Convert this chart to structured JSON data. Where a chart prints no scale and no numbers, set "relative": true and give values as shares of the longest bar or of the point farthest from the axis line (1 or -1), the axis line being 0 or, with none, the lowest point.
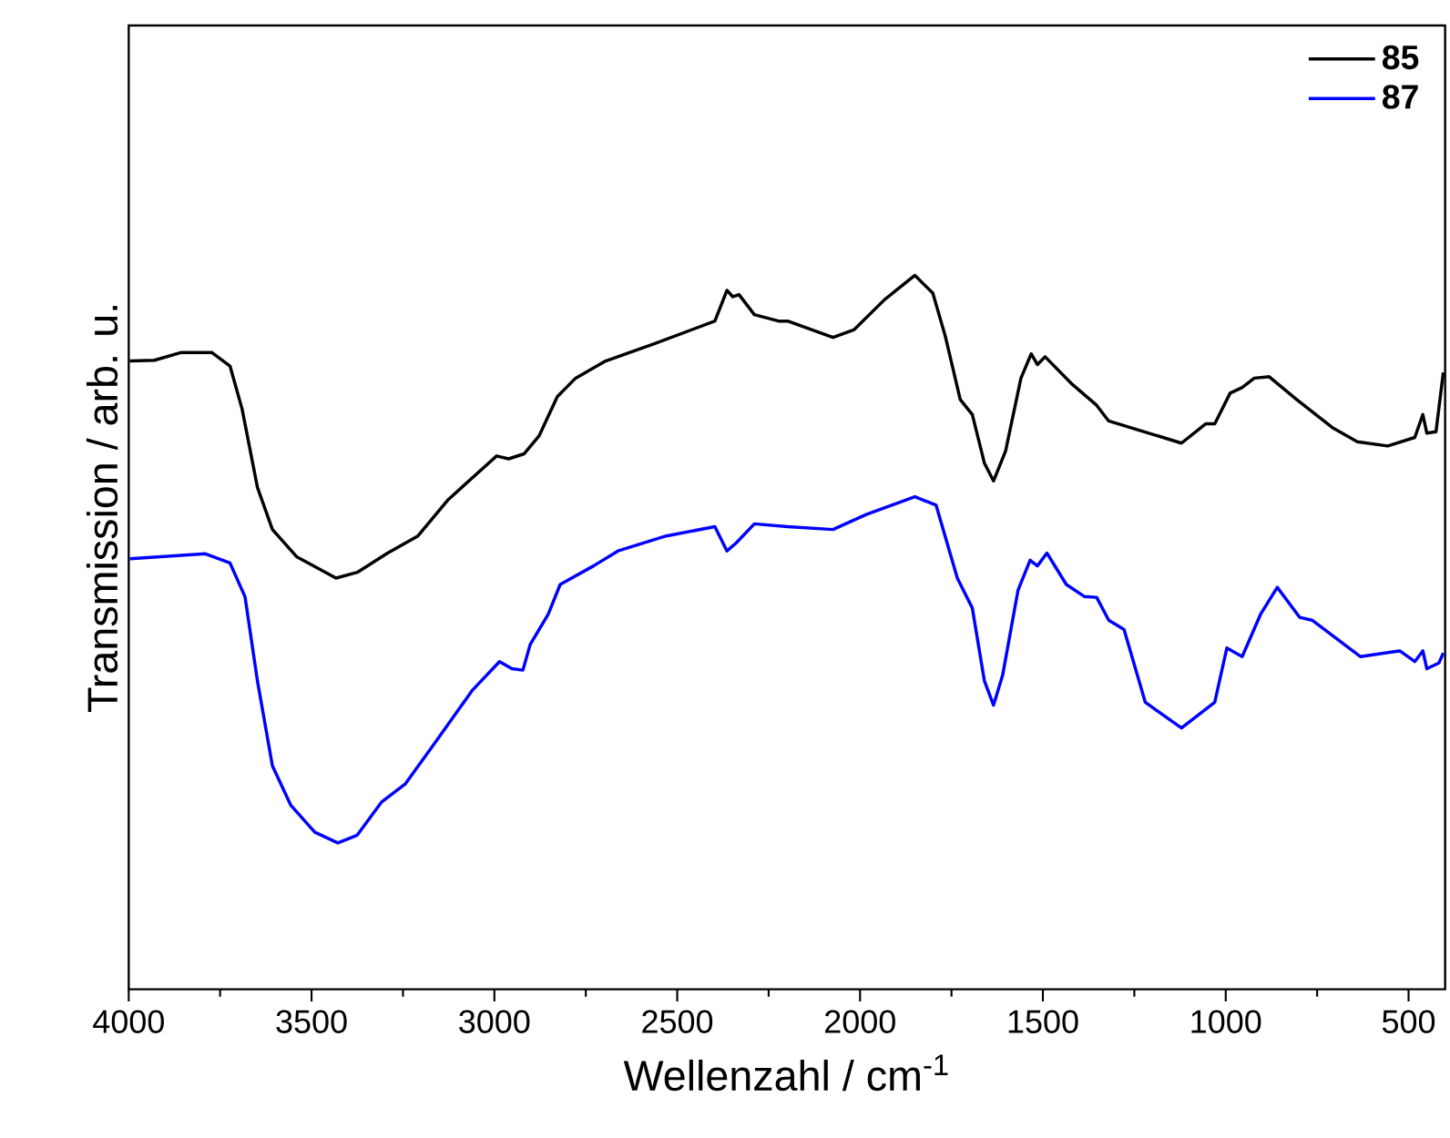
{
  "chart_data": {
    "type": "line",
    "xlabel": "Wellenzahl / cm$^{-1}$",
    "ylabel": "Transmission / arb. u.",
    "relative": true,
    "xlim": [
      4000,
      400
    ],
    "xticks": [
      4000,
      {
        "value": 3750,
        "label": null
      },
      3500,
      {
        "value": 3250,
        "label": null
      },
      3000,
      {
        "value": 2750,
        "label": null
      },
      2500,
      {
        "value": 2250,
        "label": null
      },
      2000,
      {
        "value": 1750,
        "label": null
      },
      1500,
      {
        "value": 1250,
        "label": null
      },
      1000,
      {
        "value": 750,
        "label": null
      },
      500
    ],
    "legend": "top right",
    "grid": false,
    "marker": "none",
    "line_style": "solid",
    "series": [
      {
        "name": "85",
        "color": "#000000",
        "x": [
          3997,
          3930,
          3856,
          3773,
          3723,
          3690,
          3648,
          3607,
          3541,
          3433,
          3375,
          3292,
          3209,
          3126,
          2994,
          2961,
          2919,
          2878,
          2828,
          2778,
          2696,
          2563,
          2397,
          2364,
          2348,
          2331,
          2289,
          2223,
          2198,
          2074,
          2016,
          1933,
          1850,
          1801,
          1767,
          1726,
          1693,
          1660,
          1635,
          1602,
          1560,
          1532,
          1515,
          1494,
          1419,
          1353,
          1320,
          1204,
          1121,
          1055,
          1030,
          988,
          955,
          922,
          881,
          806,
          706,
          640,
          557,
          483,
          461,
          450,
          425,
          405
        ],
        "values": [
          0.88,
          0.881,
          0.892,
          0.892,
          0.873,
          0.813,
          0.703,
          0.644,
          0.606,
          0.576,
          0.584,
          0.611,
          0.635,
          0.686,
          0.747,
          0.743,
          0.75,
          0.775,
          0.83,
          0.856,
          0.88,
          0.904,
          0.936,
          0.979,
          0.97,
          0.973,
          0.945,
          0.936,
          0.936,
          0.913,
          0.924,
          0.966,
          1,
          0.975,
          0.915,
          0.826,
          0.805,
          0.737,
          0.712,
          0.754,
          0.856,
          0.89,
          0.875,
          0.886,
          0.847,
          0.818,
          0.796,
          0.778,
          0.765,
          0.792,
          0.792,
          0.835,
          0.843,
          0.856,
          0.858,
          0.826,
          0.786,
          0.767,
          0.761,
          0.773,
          0.805,
          0.779,
          0.781,
          0.864
        ]
      },
      {
        "name": "87",
        "color": "#0000ff",
        "x": [
          3997,
          3790,
          3723,
          3682,
          3648,
          3607,
          3557,
          3491,
          3428,
          3375,
          3309,
          3243,
          3160,
          3060,
          2986,
          2952,
          2922,
          2902,
          2853,
          2820,
          2729,
          2662,
          2530,
          2397,
          2364,
          2339,
          2289,
          2198,
          2074,
          1983,
          1850,
          1792,
          1734,
          1693,
          1660,
          1635,
          1610,
          1568,
          1535,
          1515,
          1489,
          1436,
          1386,
          1353,
          1320,
          1278,
          1220,
          1121,
          1030,
          997,
          955,
          905,
          859,
          798,
          764,
          632,
          524,
          483,
          461,
          450,
          417,
          405
        ],
        "values": [
          0.603,
          0.61,
          0.597,
          0.55,
          0.432,
          0.313,
          0.258,
          0.22,
          0.205,
          0.216,
          0.262,
          0.288,
          0.347,
          0.419,
          0.459,
          0.449,
          0.447,
          0.483,
          0.525,
          0.567,
          0.593,
          0.614,
          0.635,
          0.648,
          0.614,
          0.625,
          0.652,
          0.648,
          0.644,
          0.665,
          0.69,
          0.678,
          0.576,
          0.534,
          0.432,
          0.398,
          0.44,
          0.559,
          0.601,
          0.593,
          0.611,
          0.567,
          0.55,
          0.549,
          0.517,
          0.504,
          0.402,
          0.366,
          0.402,
          0.478,
          0.466,
          0.525,
          0.563,
          0.521,
          0.517,
          0.466,
          0.474,
          0.459,
          0.474,
          0.449,
          0.457,
          0.471
        ]
      }
    ]
  }
}
